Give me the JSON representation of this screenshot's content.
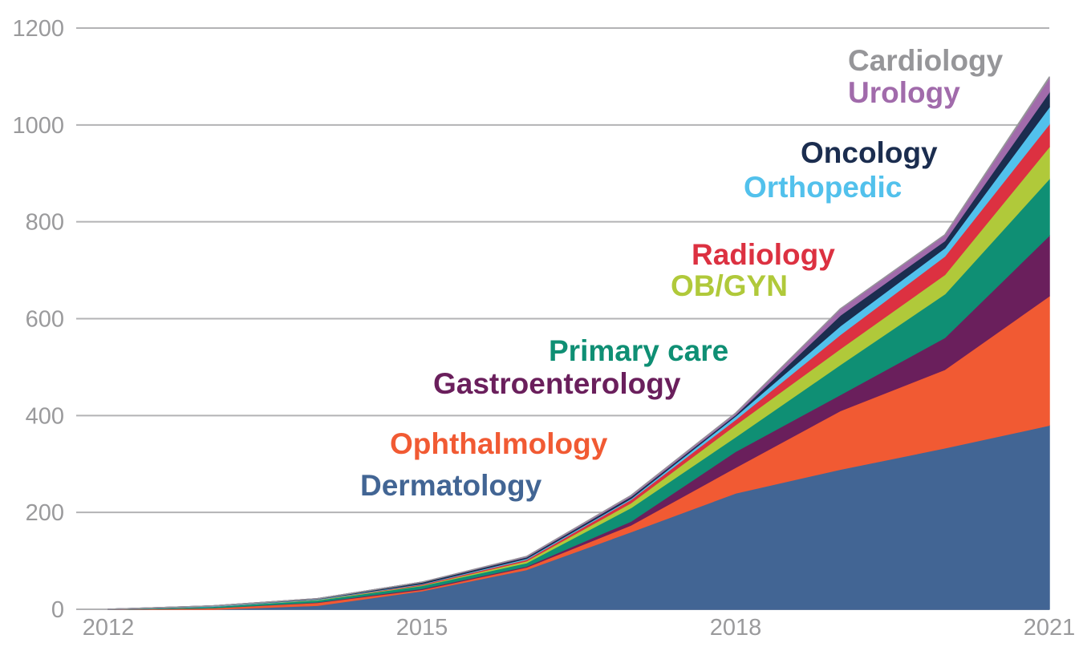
{
  "chart_data": {
    "type": "area",
    "stacked": true,
    "title": "",
    "xlabel": "",
    "ylabel": "",
    "x": [
      2012,
      2013,
      2014,
      2015,
      2016,
      2017,
      2018,
      2019,
      2020,
      2021
    ],
    "xticks": [
      "2012",
      "2015",
      "2018",
      "2021"
    ],
    "yticks": [
      "0",
      "200",
      "400",
      "600",
      "800",
      "1000",
      "1200"
    ],
    "ylim": [
      0,
      1200
    ],
    "grid": true,
    "series": [
      {
        "name": "Dermatology",
        "color": "#426594",
        "values": [
          0,
          0,
          8,
          38,
          82,
          160,
          240,
          289,
          333,
          380
        ]
      },
      {
        "name": "Ophthalmology",
        "color": "#f15a33",
        "values": [
          0,
          3,
          6,
          3,
          5,
          14,
          53,
          121,
          162,
          267
        ]
      },
      {
        "name": "Gastroenterology",
        "color": "#6a1f5c",
        "values": [
          0,
          0,
          1,
          2,
          2,
          8,
          33,
          33,
          66,
          125
        ]
      },
      {
        "name": "Primary care",
        "color": "#0f8f74",
        "values": [
          0,
          3,
          4,
          6,
          7,
          28,
          30,
          62,
          90,
          117
        ]
      },
      {
        "name": "OB/GYN",
        "color": "#b0c93a",
        "values": [
          0,
          0,
          1,
          1,
          4,
          10,
          25,
          33,
          40,
          66
        ]
      },
      {
        "name": "Radiology",
        "color": "#dc3141",
        "values": [
          0,
          0,
          0,
          2,
          3,
          7,
          11,
          29,
          38,
          47
        ]
      },
      {
        "name": "Orthopedic",
        "color": "#52c1ec",
        "values": [
          0,
          1,
          1,
          1,
          2,
          2,
          7,
          18,
          17,
          35
        ]
      },
      {
        "name": "Oncology",
        "color": "#1b2d4f",
        "values": [
          0,
          0,
          1,
          3,
          3,
          4,
          3,
          22,
          15,
          31
        ]
      },
      {
        "name": "Urology",
        "color": "#a16bab",
        "values": [
          0,
          0,
          0,
          0,
          1,
          2,
          3,
          13,
          12,
          29
        ]
      },
      {
        "name": "Cardiology",
        "color": "#969699",
        "values": [
          0,
          0,
          0,
          0,
          0,
          0,
          0,
          0,
          0,
          2
        ]
      }
    ]
  }
}
